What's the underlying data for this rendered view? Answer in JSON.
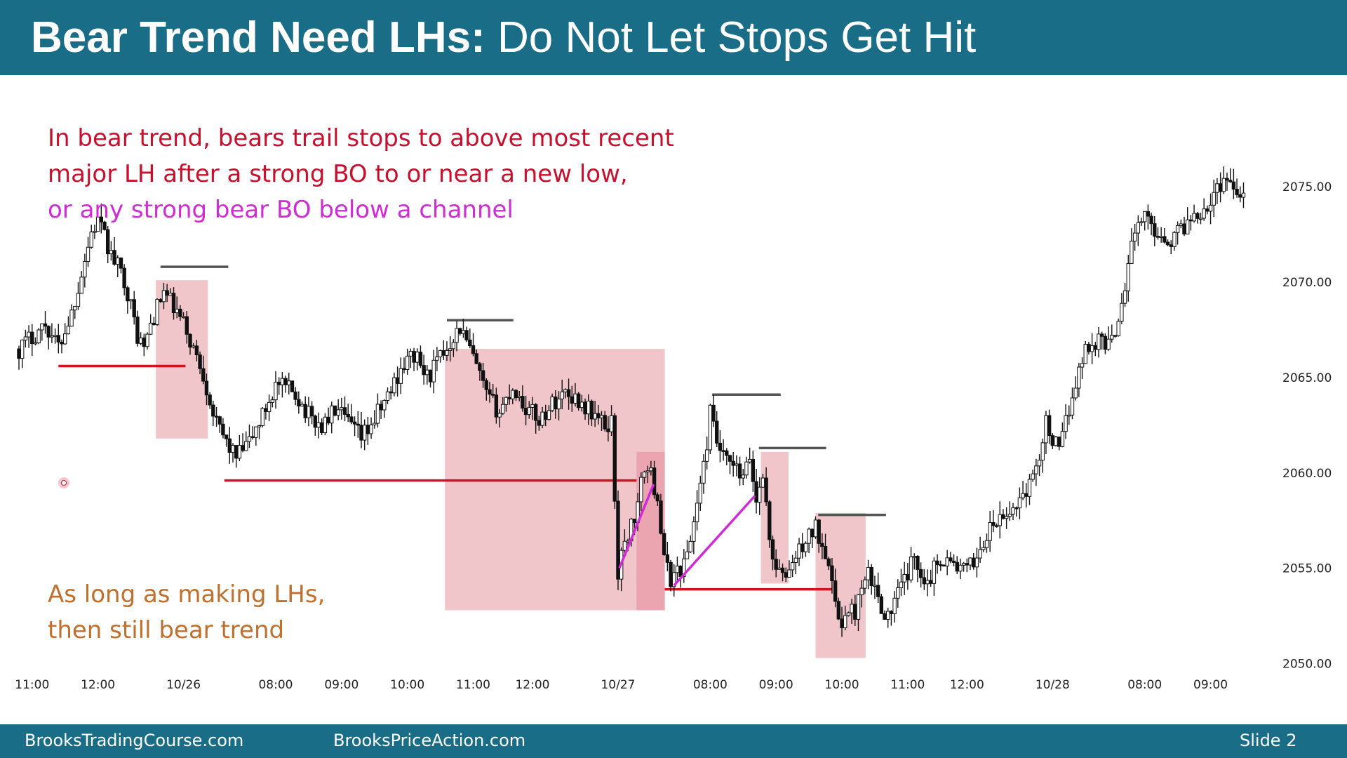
{
  "slide": {
    "title_bold": "Bear Trend Need LHs:",
    "title_rest": " Do Not Let Stops Get Hit",
    "note_top": [
      {
        "text": "In bear trend, bears trail stops to above most recent",
        "color": "#c8102e"
      },
      {
        "text": "major LH after a strong BO to or near a new low,",
        "color": "#c8102e"
      },
      {
        "text": "or any strong bear BO below a channel",
        "color": "#d12bd6"
      }
    ],
    "note_bottom": [
      {
        "text": "As long as making LHs,",
        "color": "#c0702c"
      },
      {
        "text": "then still bear trend",
        "color": "#c0702c"
      }
    ],
    "footer": {
      "left": "BrooksTradingCourse.com",
      "center": "BrooksPriceAction.com",
      "right": "Slide  2"
    }
  },
  "chart_data": {
    "type": "candlestick",
    "y_range": [
      2048,
      2080
    ],
    "y_ticks": [
      {
        "value": 2075,
        "label": "2075.00"
      },
      {
        "value": 2070,
        "label": "2070.00"
      },
      {
        "value": 2065,
        "label": "2065.00"
      },
      {
        "value": 2060,
        "label": "2060.00"
      },
      {
        "value": 2055,
        "label": "2055.00"
      },
      {
        "value": 2050,
        "label": "2050.00"
      }
    ],
    "x_range": [
      0,
      190
    ],
    "x_ticks": [
      {
        "bar": 2,
        "label": "11:00"
      },
      {
        "bar": 12,
        "label": "12:00"
      },
      {
        "bar": 25,
        "label": "10/26"
      },
      {
        "bar": 39,
        "label": "08:00"
      },
      {
        "bar": 49,
        "label": "09:00"
      },
      {
        "bar": 59,
        "label": "10:00"
      },
      {
        "bar": 69,
        "label": "11:00"
      },
      {
        "bar": 78,
        "label": "12:00"
      },
      {
        "bar": 91,
        "label": "10/27"
      },
      {
        "bar": 105,
        "label": "08:00"
      },
      {
        "bar": 115,
        "label": "09:00"
      },
      {
        "bar": 125,
        "label": "10:00"
      },
      {
        "bar": 135,
        "label": "11:00"
      },
      {
        "bar": 144,
        "label": "12:00"
      },
      {
        "bar": 157,
        "label": "10/28"
      },
      {
        "bar": 171,
        "label": "08:00"
      },
      {
        "bar": 181,
        "label": "09:00"
      }
    ],
    "close_path": [
      [
        0,
        2066.5
      ],
      [
        4,
        2067.8
      ],
      [
        6,
        2066.6
      ],
      [
        8,
        2068.4
      ],
      [
        9,
        2069.8
      ],
      [
        11,
        2072.6
      ],
      [
        12,
        2073.2
      ],
      [
        14,
        2071.4
      ],
      [
        16,
        2070.2
      ],
      [
        18,
        2067.2
      ],
      [
        19,
        2066.5
      ],
      [
        20,
        2067.8
      ],
      [
        22,
        2069.5
      ],
      [
        25,
        2067.8
      ],
      [
        28,
        2065.2
      ],
      [
        30,
        2062.5
      ],
      [
        33,
        2060.8
      ],
      [
        35,
        2061.6
      ],
      [
        37,
        2063.0
      ],
      [
        39,
        2064.6
      ],
      [
        42,
        2064.2
      ],
      [
        44,
        2063.0
      ],
      [
        46,
        2062.4
      ],
      [
        48,
        2063.3
      ],
      [
        50,
        2062.6
      ],
      [
        52,
        2061.8
      ],
      [
        54,
        2062.8
      ],
      [
        56,
        2064.0
      ],
      [
        58,
        2065.5
      ],
      [
        60,
        2066.2
      ],
      [
        62,
        2065.0
      ],
      [
        64,
        2066.0
      ],
      [
        66,
        2067.2
      ],
      [
        67,
        2067.6
      ],
      [
        69,
        2066.0
      ],
      [
        71,
        2064.0
      ],
      [
        73,
        2063.2
      ],
      [
        75,
        2064.5
      ],
      [
        77,
        2063.4
      ],
      [
        79,
        2062.8
      ],
      [
        81,
        2063.6
      ],
      [
        83,
        2064.3
      ],
      [
        85,
        2063.8
      ],
      [
        87,
        2063.2
      ],
      [
        89,
        2062.4
      ],
      [
        90,
        2062.7
      ],
      [
        91,
        2054.8
      ],
      [
        92,
        2056.3
      ],
      [
        94,
        2058.2
      ],
      [
        95,
        2060.4
      ],
      [
        96,
        2059.8
      ],
      [
        97,
        2058.8
      ],
      [
        98,
        2055.3
      ],
      [
        99,
        2054.5
      ],
      [
        101,
        2055.2
      ],
      [
        102,
        2056.5
      ],
      [
        103,
        2058.5
      ],
      [
        104,
        2060.2
      ],
      [
        105,
        2063.1
      ],
      [
        106,
        2061.6
      ],
      [
        107,
        2060.7
      ],
      [
        109,
        2060.1
      ],
      [
        110,
        2059.6
      ],
      [
        111,
        2060.8
      ],
      [
        112,
        2058.5
      ],
      [
        113,
        2060.1
      ],
      [
        114,
        2056.4
      ],
      [
        115,
        2055.1
      ],
      [
        116,
        2054.4
      ],
      [
        117,
        2055.0
      ],
      [
        119,
        2056.2
      ],
      [
        121,
        2057.1
      ],
      [
        123,
        2055.6
      ],
      [
        124,
        2052.8
      ],
      [
        125,
        2052.3
      ],
      [
        127,
        2052.8
      ],
      [
        129,
        2054.6
      ],
      [
        131,
        2053.1
      ],
      [
        132,
        2052.4
      ],
      [
        134,
        2054.0
      ],
      [
        136,
        2055.5
      ],
      [
        138,
        2054.3
      ],
      [
        140,
        2055.6
      ],
      [
        142,
        2055.2
      ],
      [
        144,
        2054.8
      ],
      [
        146,
        2056.0
      ],
      [
        148,
        2057.3
      ],
      [
        150,
        2057.6
      ],
      [
        152,
        2058.7
      ],
      [
        154,
        2059.6
      ],
      [
        156,
        2062.6
      ],
      [
        158,
        2061.0
      ],
      [
        160,
        2064.2
      ],
      [
        162,
        2066.5
      ],
      [
        164,
        2067.0
      ],
      [
        166,
        2066.8
      ],
      [
        168,
        2069.8
      ],
      [
        169,
        2072.3
      ],
      [
        171,
        2073.4
      ],
      [
        173,
        2072.6
      ],
      [
        175,
        2072.2
      ],
      [
        177,
        2073.0
      ],
      [
        179,
        2073.7
      ],
      [
        181,
        2074.2
      ],
      [
        183,
        2075.5
      ],
      [
        185,
        2075.0
      ],
      [
        186,
        2074.6
      ]
    ],
    "highlight_boxes": [
      {
        "x": [
          20.8,
          28.7
        ],
        "y": [
          2061.8,
          2070.1
        ],
        "color": "#f1c6cb"
      },
      {
        "x": [
          64.7,
          98.1
        ],
        "y": [
          2052.8,
          2066.5
        ],
        "color": "#f1c6cb"
      },
      {
        "x": [
          93.8,
          98.1
        ],
        "y": [
          2052.8,
          2061.1
        ],
        "color": "#eba5b0"
      },
      {
        "x": [
          112.7,
          116.9
        ],
        "y": [
          2054.2,
          2061.1
        ],
        "color": "#f1c6cb"
      },
      {
        "x": [
          121.0,
          128.6
        ],
        "y": [
          2050.3,
          2057.9
        ],
        "color": "#f1c6cb"
      }
    ],
    "red_lines": [
      {
        "x": [
          6.0,
          25.3
        ],
        "y": 2065.6
      },
      {
        "x": [
          31.2,
          93.8
        ],
        "y": 2059.6
      },
      {
        "x": [
          98.1,
          123.5
        ],
        "y": 2053.9
      }
    ],
    "gray_lines": [
      {
        "x": [
          21.5,
          31.8
        ],
        "y": 2070.8
      },
      {
        "x": [
          65.0,
          75.1
        ],
        "y": 2068.0
      },
      {
        "x": [
          105.3,
          115.7
        ],
        "y": 2064.1
      },
      {
        "x": [
          112.4,
          122.6
        ],
        "y": 2061.3
      },
      {
        "x": [
          121.4,
          131.7
        ],
        "y": 2057.8
      }
    ],
    "magenta_lines": [
      {
        "from": [
          91.2,
          2055.0
        ],
        "to": [
          96.4,
          2059.4
        ]
      },
      {
        "from": [
          99.5,
          2054.1
        ],
        "to": [
          111.8,
          2058.8
        ]
      }
    ]
  }
}
